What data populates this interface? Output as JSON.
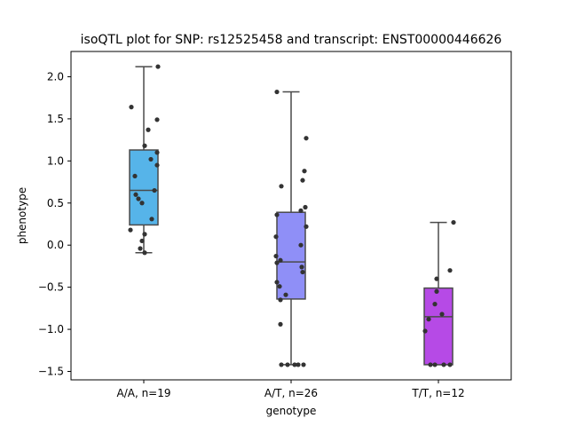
{
  "chart_data": {
    "type": "box",
    "title": "isoQTL plot for SNP: rs12525458 and transcript: ENST00000446626",
    "xlabel": "genotype",
    "ylabel": "phenotype",
    "ylim": [
      -1.6,
      2.3
    ],
    "yticks": [
      -1.5,
      -1.0,
      -0.5,
      0.0,
      0.5,
      1.0,
      1.5,
      2.0
    ],
    "ytick_labels": [
      "−1.5",
      "−1.0",
      "−0.5",
      "0.0",
      "0.5",
      "1.0",
      "1.5",
      "2.0"
    ],
    "grid": false,
    "colors": {
      "box_outline": "#4a4a4a",
      "point": "#333333",
      "axis": "#000000"
    },
    "categories": [
      {
        "label": "A/A, n=19",
        "color": "#56b4e9",
        "box": {
          "q1": 0.24,
          "median": 0.65,
          "q3": 1.13,
          "whisker_low": -0.09,
          "whisker_high": 2.12
        },
        "points": [
          2.12,
          1.64,
          1.49,
          1.37,
          1.18,
          1.1,
          1.02,
          0.95,
          0.82,
          0.65,
          0.6,
          0.55,
          0.5,
          0.31,
          0.18,
          0.13,
          0.05,
          -0.04,
          -0.09
        ],
        "jitter": [
          0.16,
          -0.14,
          0.15,
          0.05,
          0.01,
          0.15,
          0.08,
          0.15,
          -0.1,
          0.12,
          -0.09,
          -0.06,
          -0.02,
          0.09,
          -0.15,
          0.01,
          -0.02,
          -0.04,
          0.01
        ]
      },
      {
        "label": "A/T, n=26",
        "color": "#8f8ff7",
        "box": {
          "q1": -0.64,
          "median": -0.2,
          "q3": 0.39,
          "whisker_low": -1.42,
          "whisker_high": 1.82
        },
        "points": [
          1.82,
          1.27,
          0.88,
          0.77,
          0.7,
          0.45,
          0.41,
          0.36,
          0.22,
          0.1,
          0.0,
          -0.13,
          -0.18,
          -0.21,
          -0.26,
          -0.32,
          -0.44,
          -0.49,
          -0.59,
          -0.65,
          -0.94,
          -1.42,
          -1.42,
          -1.42,
          -1.42,
          -1.42
        ],
        "jitter": [
          -0.16,
          0.17,
          0.15,
          0.13,
          -0.11,
          0.16,
          0.11,
          -0.16,
          0.17,
          -0.17,
          0.11,
          -0.17,
          -0.12,
          -0.16,
          0.12,
          0.13,
          -0.16,
          -0.13,
          -0.06,
          -0.12,
          -0.12,
          -0.11,
          0.04,
          0.08,
          0.14,
          -0.04
        ]
      },
      {
        "label": "T/T, n=12",
        "color": "#b64ae6",
        "box": {
          "q1": -1.42,
          "median": -0.85,
          "q3": -0.51,
          "whisker_low": -1.42,
          "whisker_high": 0.27
        },
        "points": [
          0.27,
          -0.3,
          -0.4,
          -0.55,
          -0.7,
          -0.82,
          -0.88,
          -1.02,
          -1.42,
          -1.42,
          -1.42,
          -1.42
        ],
        "jitter": [
          0.17,
          0.13,
          -0.02,
          -0.02,
          -0.04,
          0.04,
          -0.11,
          -0.15,
          -0.09,
          -0.04,
          0.06,
          0.13
        ]
      }
    ]
  }
}
